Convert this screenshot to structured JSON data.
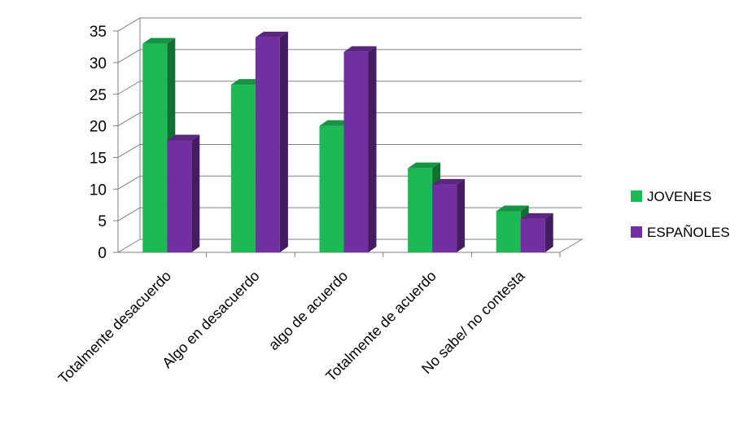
{
  "chart_data": {
    "type": "bar",
    "title": "",
    "xlabel": "",
    "ylabel": "",
    "ylim": [
      0,
      35
    ],
    "yticks": [
      0,
      5,
      10,
      15,
      20,
      25,
      30,
      35
    ],
    "grid": true,
    "three_d": true,
    "legend_position": "right",
    "categories": [
      "Totalmente desacuerdo",
      "Algo en desacuerdo",
      "algo de acuerdo",
      "Totalmente de acuerdo",
      "No sabe/ no contesta"
    ],
    "series": [
      {
        "name": "JOVENES",
        "color": "#1db954",
        "values": [
          33,
          26.5,
          20,
          13.3,
          6.5
        ]
      },
      {
        "name": "ESPAÑOLES",
        "color": "#7030a0",
        "values": [
          17.7,
          34,
          31.7,
          10.7,
          5.3
        ]
      }
    ]
  }
}
